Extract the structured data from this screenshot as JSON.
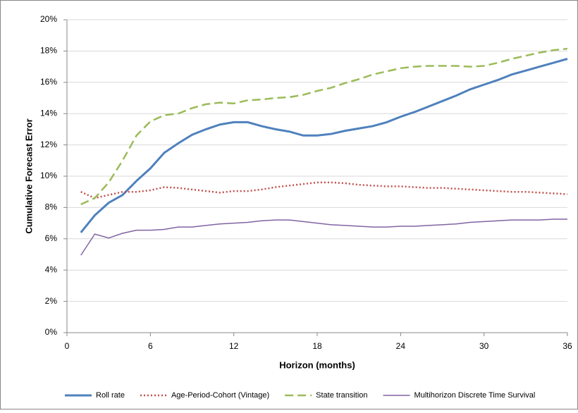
{
  "chart_data": {
    "type": "line",
    "ylabel": "Cumulative Forecast Error",
    "xlabel": "Horizon (months)",
    "x": [
      1,
      2,
      3,
      4,
      5,
      6,
      7,
      8,
      9,
      10,
      11,
      12,
      13,
      14,
      15,
      16,
      17,
      18,
      19,
      20,
      21,
      22,
      23,
      24,
      25,
      26,
      27,
      28,
      29,
      30,
      31,
      32,
      33,
      34,
      35,
      36
    ],
    "xlim": [
      0,
      36
    ],
    "xticks": [
      0,
      6,
      12,
      18,
      24,
      30,
      36
    ],
    "ylim": [
      0,
      20
    ],
    "yticks": [
      {
        "value": 0,
        "label": "0%"
      },
      {
        "value": 2,
        "label": "2%"
      },
      {
        "value": 4,
        "label": "4%"
      },
      {
        "value": 6,
        "label": "6%"
      },
      {
        "value": 8,
        "label": "8%"
      },
      {
        "value": 10,
        "label": "10%"
      },
      {
        "value": 12,
        "label": "12%"
      },
      {
        "value": 14,
        "label": "14%"
      },
      {
        "value": 16,
        "label": "16%"
      },
      {
        "value": 18,
        "label": "18%"
      },
      {
        "value": 20,
        "label": "20%"
      }
    ],
    "grid": true,
    "legend": "bottom",
    "series": [
      {
        "name": "Roll rate",
        "color": "#4f81bd",
        "line_style": "solid",
        "values": [
          6.4,
          7.5,
          8.3,
          8.8,
          9.7,
          10.5,
          11.5,
          12.1,
          12.65,
          13.0,
          13.3,
          13.45,
          13.45,
          13.2,
          13.0,
          12.85,
          12.6,
          12.6,
          12.7,
          12.9,
          13.05,
          13.2,
          13.45,
          13.8,
          14.1,
          14.45,
          14.8,
          15.15,
          15.55,
          15.85,
          16.15,
          16.5,
          16.75,
          17.0,
          17.25,
          17.5
        ]
      },
      {
        "name": "Age-Period-Cohort (Vintage)",
        "color": "#c0504d",
        "line_style": "dotted",
        "values": [
          9.0,
          8.6,
          8.8,
          9.0,
          9.0,
          9.1,
          9.3,
          9.25,
          9.15,
          9.05,
          8.95,
          9.05,
          9.05,
          9.15,
          9.3,
          9.4,
          9.5,
          9.6,
          9.6,
          9.55,
          9.45,
          9.4,
          9.35,
          9.35,
          9.3,
          9.25,
          9.25,
          9.2,
          9.15,
          9.1,
          9.05,
          9.0,
          9.0,
          8.95,
          8.9,
          8.85
        ]
      },
      {
        "name": "State transition",
        "color": "#9bbb59",
        "line_style": "dashed",
        "values": [
          8.2,
          8.6,
          9.6,
          11.0,
          12.6,
          13.5,
          13.9,
          14.0,
          14.35,
          14.6,
          14.7,
          14.65,
          14.85,
          14.9,
          15.0,
          15.05,
          15.2,
          15.45,
          15.65,
          15.95,
          16.2,
          16.5,
          16.7,
          16.9,
          17.0,
          17.05,
          17.05,
          17.05,
          17.0,
          17.05,
          17.25,
          17.5,
          17.7,
          17.9,
          18.05,
          18.15
        ]
      },
      {
        "name": "Multihorizon Discrete Time Survival",
        "color": "#8064a2",
        "line_style": "solid",
        "values": [
          4.95,
          6.3,
          6.05,
          6.35,
          6.55,
          6.55,
          6.6,
          6.75,
          6.75,
          6.85,
          6.95,
          7.0,
          7.05,
          7.15,
          7.2,
          7.2,
          7.1,
          7.0,
          6.9,
          6.85,
          6.8,
          6.75,
          6.75,
          6.8,
          6.8,
          6.85,
          6.9,
          6.95,
          7.05,
          7.1,
          7.15,
          7.2,
          7.2,
          7.2,
          7.25,
          7.25
        ]
      }
    ]
  }
}
